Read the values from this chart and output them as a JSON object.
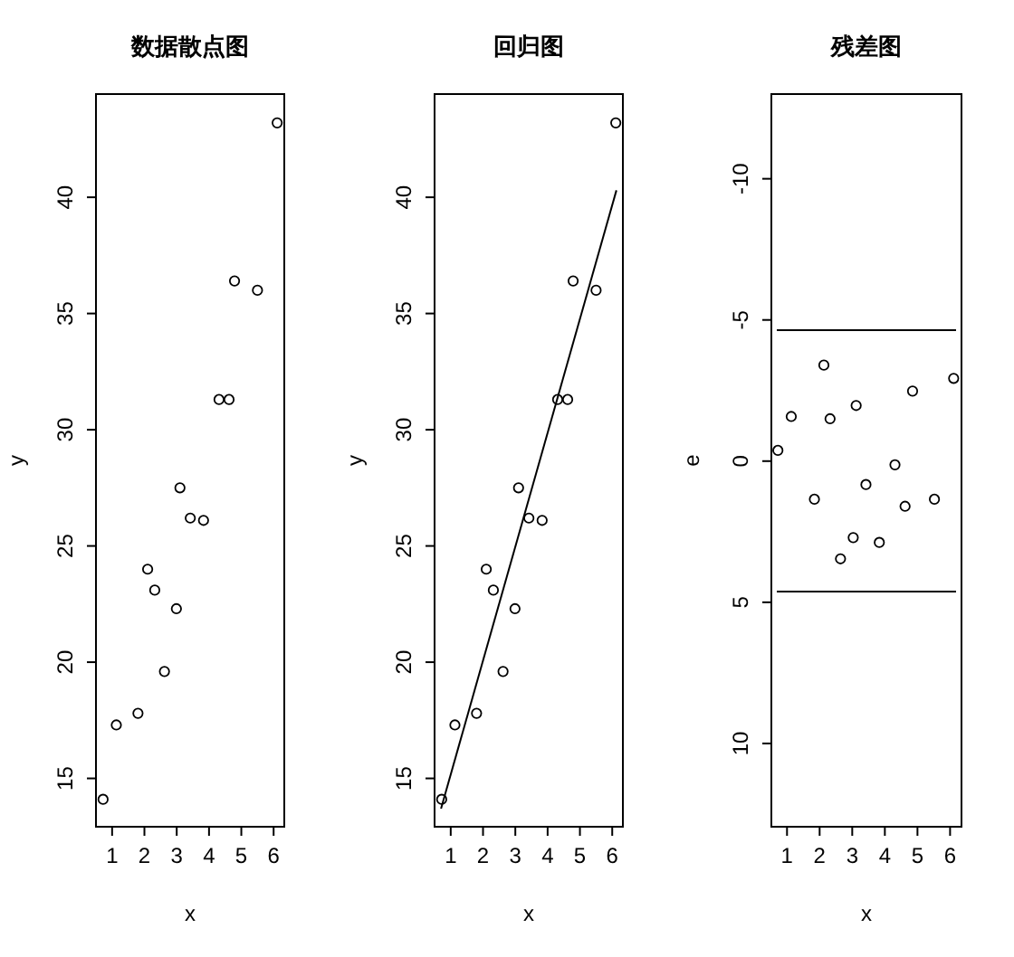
{
  "chart_data": [
    {
      "type": "scatter",
      "title": "数据散点图",
      "xlabel": "x",
      "ylabel": "y",
      "marker": "circle",
      "grid": false,
      "xlim": [
        0.5,
        6.33
      ],
      "ylim": [
        12.92,
        44.44
      ],
      "xticks": [
        1,
        2,
        3,
        4,
        5,
        6
      ],
      "yticks": [
        15,
        20,
        25,
        30,
        35,
        40
      ],
      "x": [
        0.72,
        1.13,
        1.8,
        2.1,
        2.32,
        2.62,
        2.99,
        3.1,
        3.42,
        3.83,
        4.31,
        4.62,
        4.79,
        5.5,
        6.11
      ],
      "values": [
        14.1,
        17.3,
        17.8,
        24.0,
        23.1,
        19.6,
        22.3,
        27.5,
        26.2,
        26.1,
        31.3,
        31.3,
        36.4,
        36.0,
        43.2
      ]
    },
    {
      "type": "scatter",
      "title": "回归图",
      "xlabel": "x",
      "ylabel": "y",
      "marker": "circle",
      "grid": false,
      "xlim": [
        0.5,
        6.33
      ],
      "ylim": [
        12.92,
        44.44
      ],
      "xticks": [
        1,
        2,
        3,
        4,
        5,
        6
      ],
      "yticks": [
        15,
        20,
        25,
        30,
        35,
        40
      ],
      "series": [
        {
          "color": "#000000",
          "x": [
            0.72,
            1.13,
            1.8,
            2.1,
            2.32,
            2.62,
            2.99,
            3.1,
            3.42,
            3.83,
            4.31,
            4.62,
            4.79,
            5.5,
            6.11
          ],
          "values": [
            14.1,
            17.3,
            17.8,
            24.0,
            23.1,
            19.6,
            22.3,
            27.5,
            26.2,
            26.1,
            31.3,
            31.3,
            36.4,
            36.0,
            43.2
          ]
        },
        {
          "type": "line",
          "marker": "none",
          "color": "#000000",
          "x": [
            0.7,
            6.13
          ],
          "values": [
            13.7,
            40.3
          ]
        }
      ]
    },
    {
      "type": "scatter",
      "title": "残差图",
      "xlabel": "x",
      "ylabel": "e",
      "marker": "circle",
      "grid": false,
      "xlim": [
        0.52,
        6.35
      ],
      "ylim": [
        12.95,
        -13.0
      ],
      "xticks": [
        1,
        2,
        3,
        4,
        5,
        6
      ],
      "yticks": [
        -10,
        -5,
        0,
        5,
        10
      ],
      "x": [
        0.72,
        1.13,
        1.84,
        2.13,
        2.32,
        2.64,
        3.03,
        3.12,
        3.42,
        3.83,
        4.31,
        4.62,
        4.85,
        5.52,
        6.11
      ],
      "values": [
        -0.38,
        -1.58,
        1.35,
        -3.4,
        -1.5,
        3.46,
        2.71,
        -1.97,
        0.83,
        2.88,
        0.13,
        1.6,
        -2.48,
        1.35,
        -2.93
      ],
      "ref_lines": [
        {
          "axis": "y",
          "value": -4.64,
          "color": "#000000"
        },
        {
          "axis": "y",
          "value": 4.62,
          "color": "#000000"
        }
      ]
    }
  ]
}
